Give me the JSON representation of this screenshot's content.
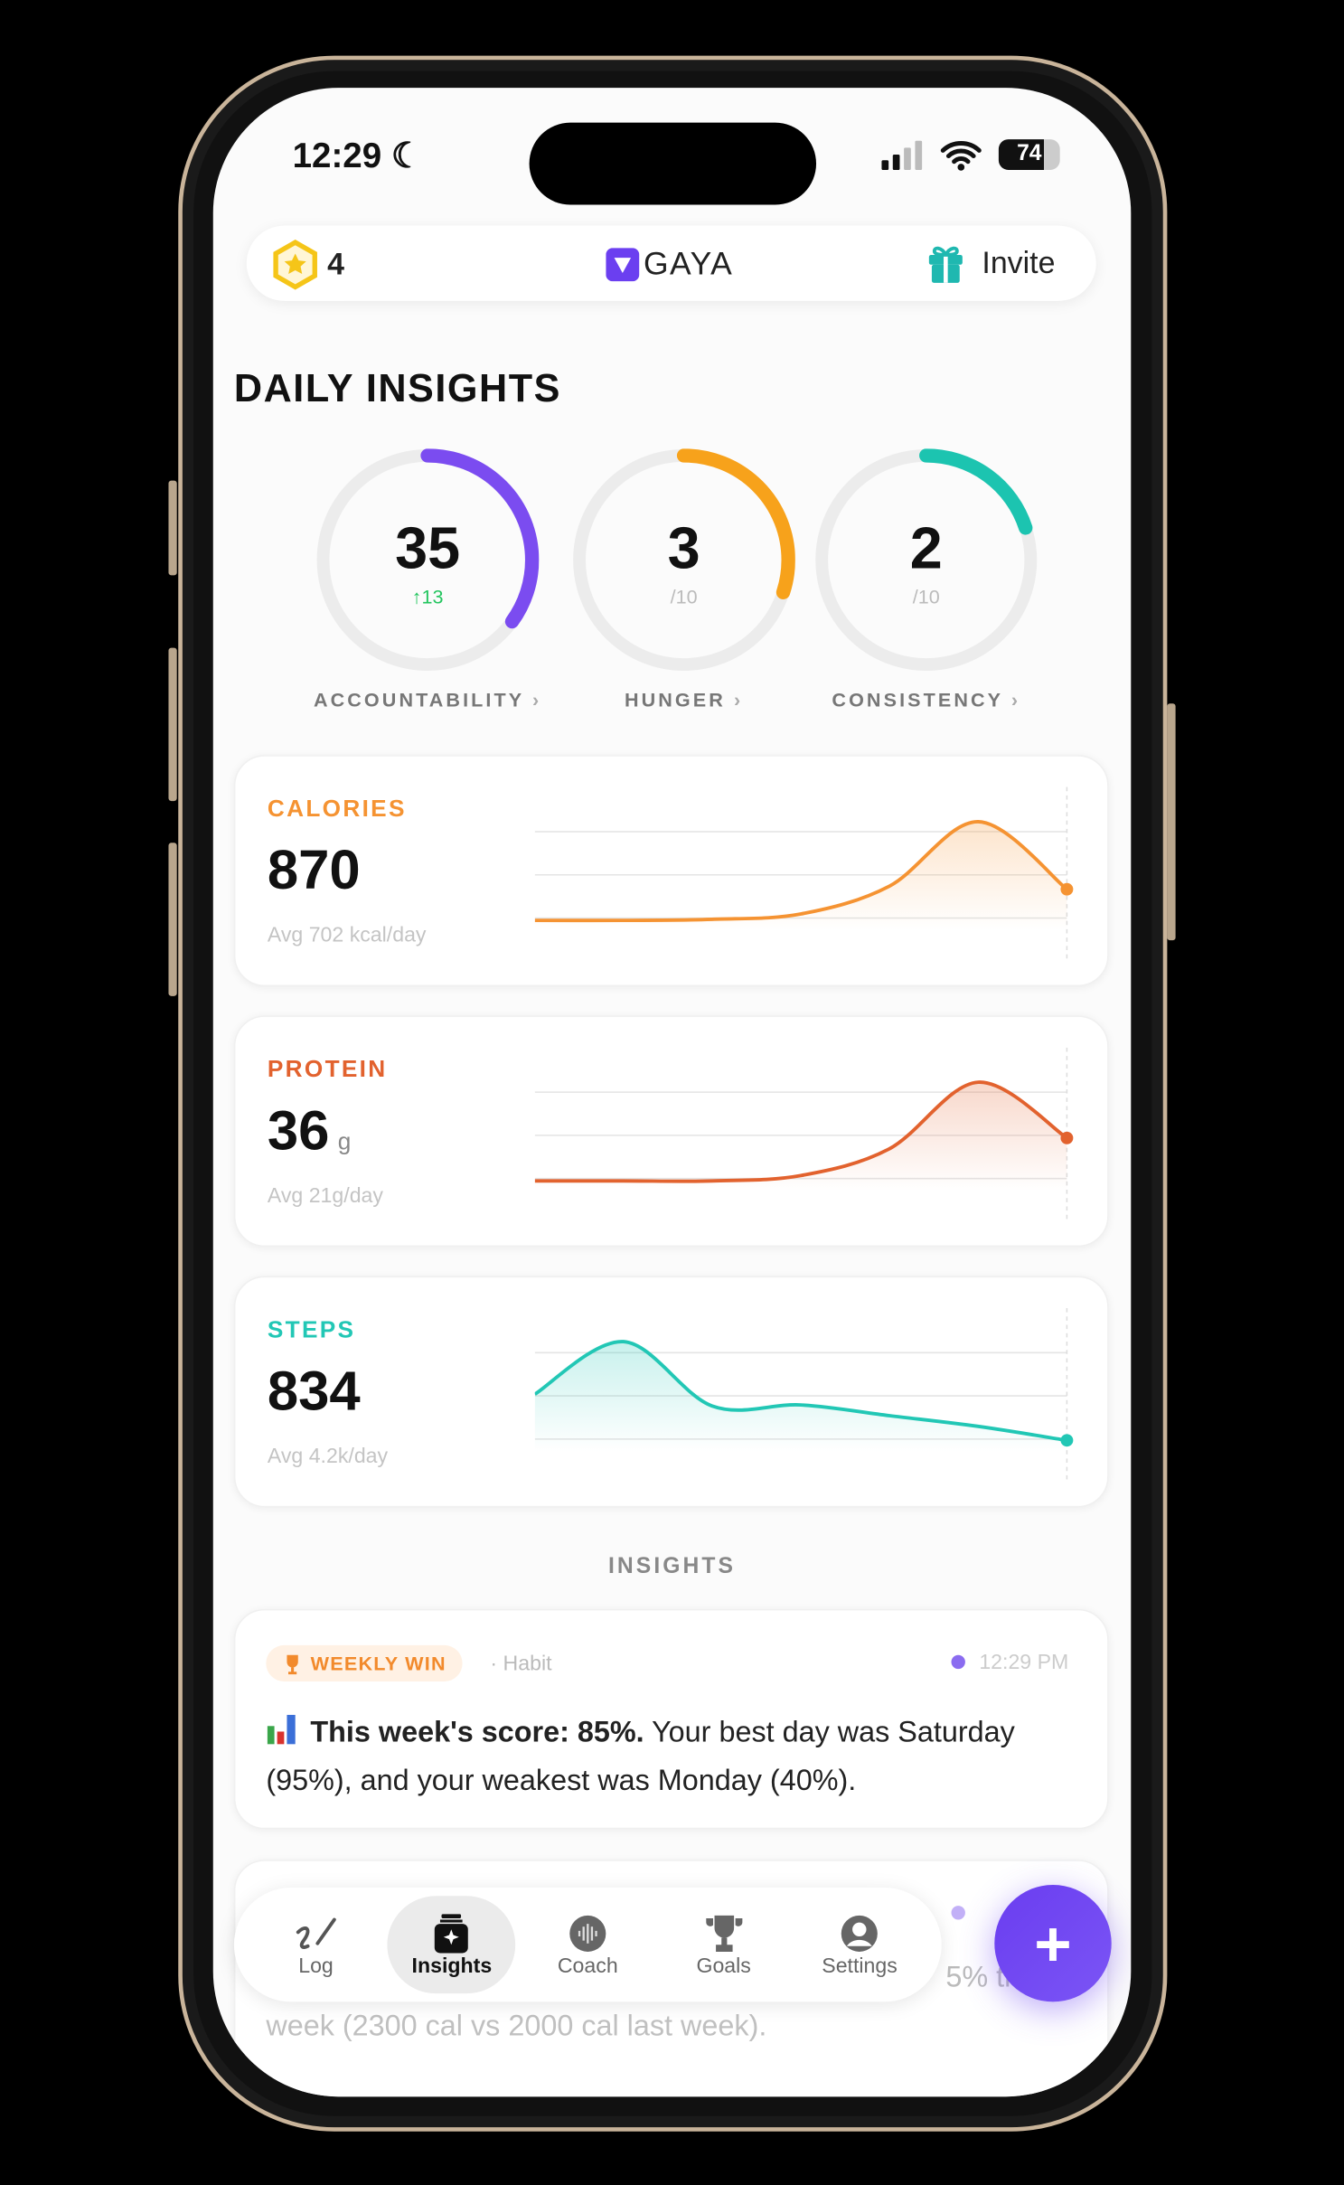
{
  "status_bar": {
    "time": "12:29",
    "battery": "74"
  },
  "header": {
    "points": "4",
    "brand": "GAYA",
    "invite_label": "Invite"
  },
  "daily_insights": {
    "title": "DAILY INSIGHTS",
    "rings": [
      {
        "label": "ACCOUNTABILITY",
        "value": "35",
        "sub": "↑13",
        "progress": 0.35,
        "color": "#7b4cf0",
        "sub_color": "#22c55e"
      },
      {
        "label": "HUNGER",
        "value": "3",
        "sub": "/10",
        "progress": 0.3,
        "color": "#f7a21b",
        "sub_color": "#bbbbbb"
      },
      {
        "label": "CONSISTENCY",
        "value": "2",
        "sub": "/10",
        "progress": 0.2,
        "color": "#1cc4b0",
        "sub_color": "#bbbbbb"
      }
    ]
  },
  "metrics": [
    {
      "label": "CALORIES",
      "value": "870",
      "unit": "",
      "avg": "Avg 702 kcal/day",
      "color": "#f59332",
      "trend": [
        3,
        3,
        4,
        9,
        35,
        95,
        32
      ]
    },
    {
      "label": "PROTEIN",
      "value": "36",
      "unit": "g",
      "avg": "Avg 21g/day",
      "color": "#e2622e",
      "trend": [
        3,
        3,
        3,
        8,
        33,
        95,
        43
      ]
    },
    {
      "label": "STEPS",
      "value": "834",
      "unit": "",
      "avg": "Avg 4.2k/day",
      "color": "#22c7b5",
      "trend": [
        47,
        96,
        36,
        37,
        27,
        17,
        4
      ]
    }
  ],
  "insights": {
    "heading": "INSIGHTS",
    "cards": [
      {
        "badge": "WEEKLY WIN",
        "category": "· Habit",
        "time": "12:29 PM",
        "bold": "This week's score: 85%.",
        "text": " Your best day was Saturday (95%), and your weakest was Monday (40%)."
      },
      {
        "partial_a": "5% th",
        "partial_b": "week (2300 cal vs 2000 cal last week)."
      }
    ]
  },
  "nav": {
    "items": [
      {
        "label": "Log"
      },
      {
        "label": "Insights",
        "active": true
      },
      {
        "label": "Coach"
      },
      {
        "label": "Goals"
      },
      {
        "label": "Settings"
      }
    ]
  },
  "fab_label": "+"
}
